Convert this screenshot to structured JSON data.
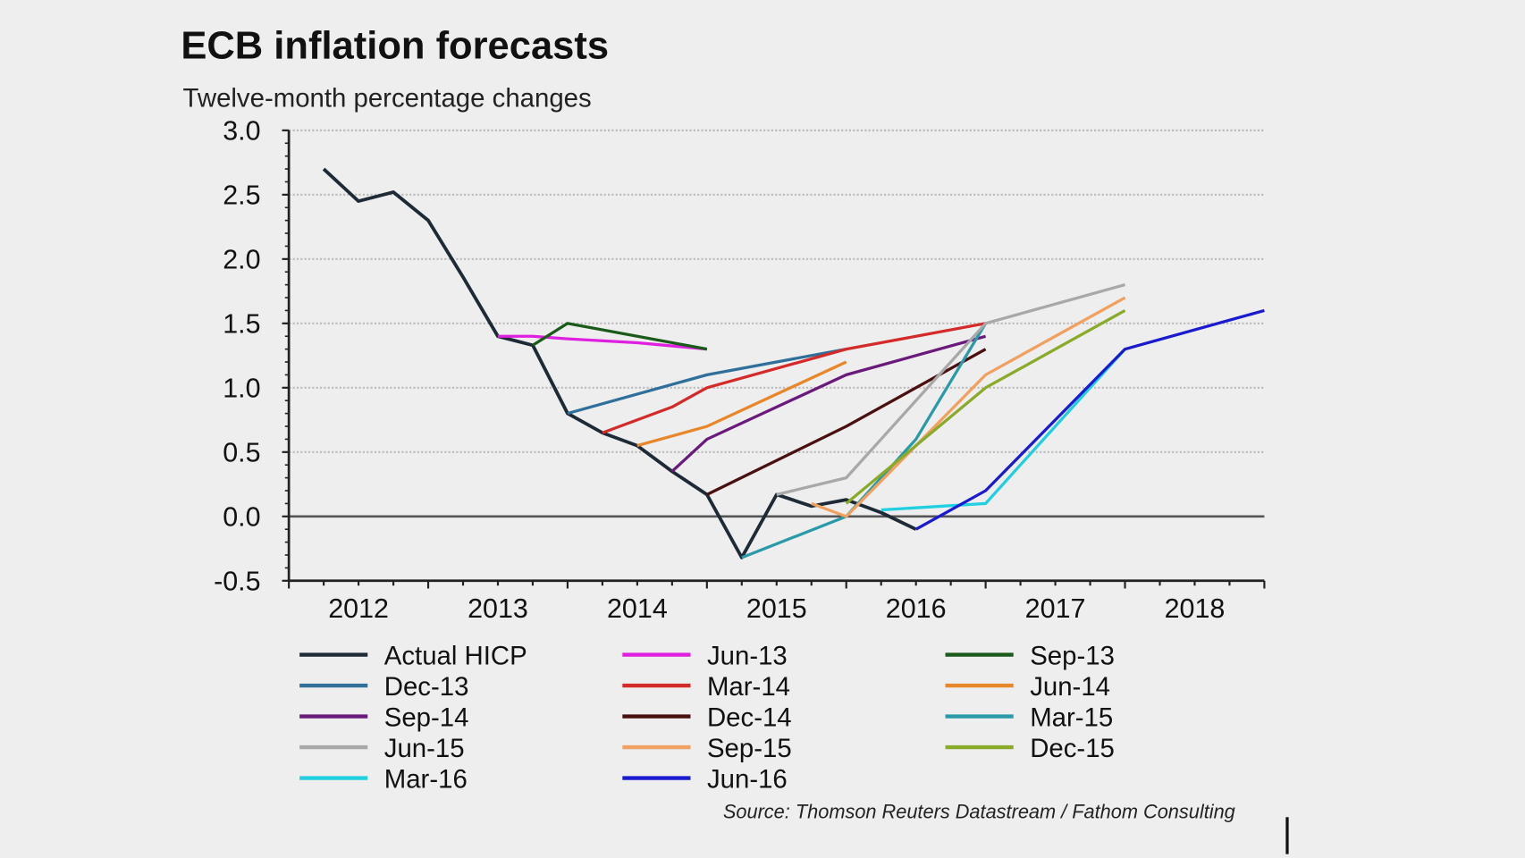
{
  "chart_data": {
    "type": "line",
    "title": "ECB inflation forecasts",
    "subtitle": "Twelve-month percentage changes",
    "source": "Source: Thomson Reuters Datastream / Fathom Consulting",
    "xlim": [
      2012,
      2019
    ],
    "ylim": [
      -0.5,
      3.0
    ],
    "yticks": [
      "3.0",
      "2.5",
      "2.0",
      "1.5",
      "1.0",
      "0.5",
      "0.0",
      "-0.5"
    ],
    "ytick_values": [
      3.0,
      2.5,
      2.0,
      1.5,
      1.0,
      0.5,
      0.0,
      -0.5
    ],
    "xtick_labels": [
      "2012",
      "2013",
      "2014",
      "2015",
      "2016",
      "2017",
      "2018"
    ],
    "grid": "horizontal dotted",
    "legend_placement": "bottom",
    "series": [
      {
        "name": "Actual HICP",
        "color": "#1e2a36",
        "points": [
          [
            2012.25,
            2.7
          ],
          [
            2012.5,
            2.45
          ],
          [
            2012.75,
            2.52
          ],
          [
            2013.0,
            2.3
          ],
          [
            2013.25,
            1.86
          ],
          [
            2013.5,
            1.4
          ],
          [
            2013.75,
            1.33
          ],
          [
            2014.0,
            0.8
          ],
          [
            2014.25,
            0.65
          ],
          [
            2014.5,
            0.55
          ],
          [
            2014.75,
            0.35
          ],
          [
            2015.0,
            0.17
          ],
          [
            2015.25,
            -0.32
          ],
          [
            2015.5,
            0.17
          ],
          [
            2015.75,
            0.08
          ],
          [
            2016.0,
            0.13
          ],
          [
            2016.25,
            0.03
          ],
          [
            2016.5,
            -0.1
          ]
        ]
      },
      {
        "name": "Jun-13",
        "color": "#e020e0",
        "points": [
          [
            2013.5,
            1.4
          ],
          [
            2013.75,
            1.4
          ],
          [
            2014.0,
            1.38
          ],
          [
            2014.5,
            1.35
          ],
          [
            2015.0,
            1.3
          ]
        ]
      },
      {
        "name": "Sep-13",
        "color": "#1a5a1a",
        "points": [
          [
            2013.75,
            1.33
          ],
          [
            2014.0,
            1.5
          ],
          [
            2015.0,
            1.3
          ]
        ]
      },
      {
        "name": "Dec-13",
        "color": "#2f6f9a",
        "points": [
          [
            2014.0,
            0.8
          ],
          [
            2015.0,
            1.1
          ],
          [
            2016.0,
            1.3
          ]
        ]
      },
      {
        "name": "Mar-14",
        "color": "#d42a2a",
        "points": [
          [
            2014.25,
            0.65
          ],
          [
            2014.75,
            0.85
          ],
          [
            2015.0,
            1.0
          ],
          [
            2016.0,
            1.3
          ],
          [
            2016.5,
            1.4
          ],
          [
            2017.0,
            1.5
          ]
        ]
      },
      {
        "name": "Jun-14",
        "color": "#e8862a",
        "points": [
          [
            2014.5,
            0.55
          ],
          [
            2015.0,
            0.7
          ],
          [
            2015.5,
            0.95
          ],
          [
            2016.0,
            1.2
          ]
        ]
      },
      {
        "name": "Sep-14",
        "color": "#6a1a7a",
        "points": [
          [
            2014.75,
            0.35
          ],
          [
            2015.0,
            0.6
          ],
          [
            2016.0,
            1.1
          ],
          [
            2017.0,
            1.4
          ]
        ]
      },
      {
        "name": "Dec-14",
        "color": "#4a1010",
        "points": [
          [
            2015.0,
            0.17
          ],
          [
            2016.0,
            0.7
          ],
          [
            2017.0,
            1.3
          ]
        ]
      },
      {
        "name": "Mar-15",
        "color": "#2a9aa8",
        "points": [
          [
            2015.25,
            -0.32
          ],
          [
            2016.0,
            0.0
          ],
          [
            2016.5,
            0.6
          ],
          [
            2017.0,
            1.5
          ]
        ]
      },
      {
        "name": "Jun-15",
        "color": "#a8a8a8",
        "points": [
          [
            2015.5,
            0.17
          ],
          [
            2016.0,
            0.3
          ],
          [
            2017.0,
            1.5
          ],
          [
            2018.0,
            1.8
          ]
        ]
      },
      {
        "name": "Sep-15",
        "color": "#f0a060",
        "points": [
          [
            2015.75,
            0.1
          ],
          [
            2016.0,
            0.0
          ],
          [
            2017.0,
            1.1
          ],
          [
            2018.0,
            1.7
          ]
        ]
      },
      {
        "name": "Dec-15",
        "color": "#8aaa2a",
        "points": [
          [
            2016.0,
            0.1
          ],
          [
            2017.0,
            1.0
          ],
          [
            2018.0,
            1.6
          ]
        ]
      },
      {
        "name": "Mar-16",
        "color": "#20d0e0",
        "points": [
          [
            2016.25,
            0.05
          ],
          [
            2017.0,
            0.1
          ],
          [
            2018.0,
            1.3
          ]
        ]
      },
      {
        "name": "Jun-16",
        "color": "#1a1ad0",
        "points": [
          [
            2016.5,
            -0.1
          ],
          [
            2017.0,
            0.2
          ],
          [
            2018.0,
            1.3
          ],
          [
            2019.0,
            1.6
          ]
        ]
      }
    ]
  }
}
